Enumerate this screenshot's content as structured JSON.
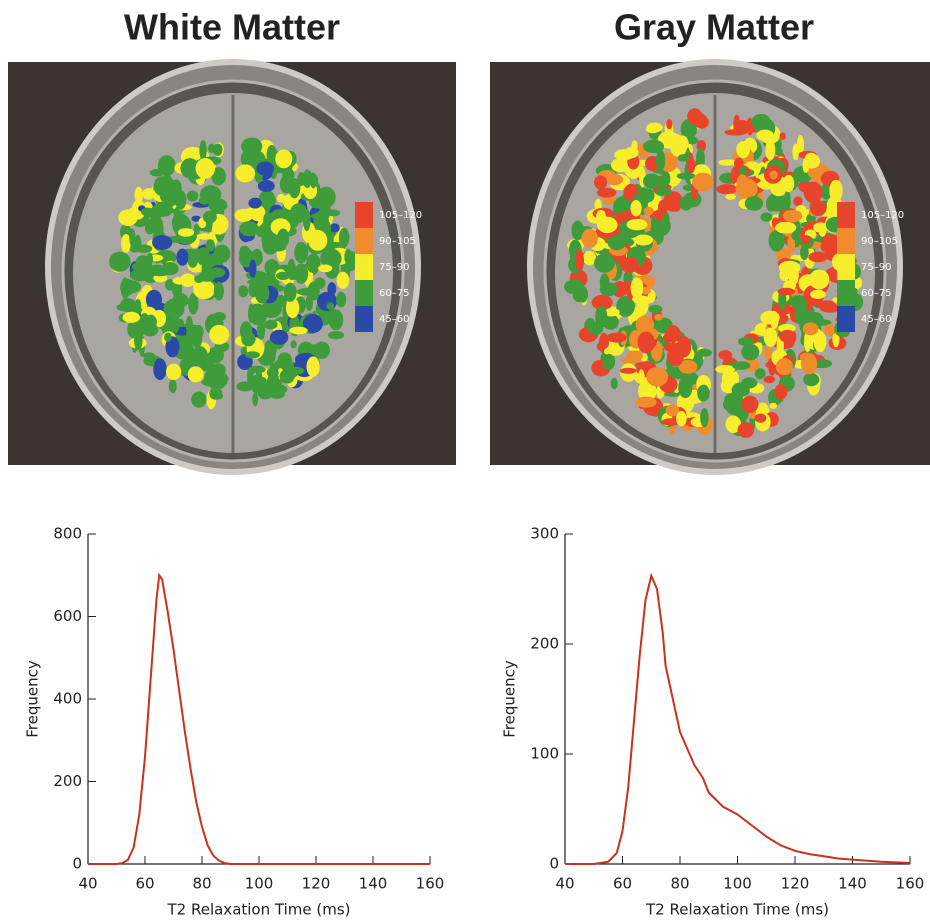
{
  "chart_data": [
    {
      "type": "line",
      "title": "White Matter",
      "image_legend": {
        "labels": [
          "105–120",
          "90–105",
          "75–90",
          "60–75",
          "45–60"
        ],
        "colors": [
          "#e8442c",
          "#f08c2c",
          "#f6ee2a",
          "#3f9c3a",
          "#2a4aa8"
        ]
      },
      "xlabel": "T2 Relaxation Time (ms)",
      "ylabel": "Frequency",
      "x": [
        40,
        50,
        52,
        54,
        56,
        58,
        60,
        62,
        64,
        65,
        66,
        68,
        70,
        72,
        74,
        76,
        78,
        80,
        82,
        84,
        86,
        88,
        90,
        100,
        120,
        140,
        160
      ],
      "series": [
        {
          "color": "#c8321e",
          "values": [
            0,
            0,
            2,
            10,
            40,
            120,
            260,
            450,
            640,
            700,
            690,
            610,
            520,
            420,
            320,
            230,
            150,
            90,
            45,
            20,
            8,
            2,
            0,
            0,
            0,
            0,
            0
          ]
        }
      ],
      "xlim": [
        40,
        160
      ],
      "ylim": [
        0,
        800
      ],
      "xticks": [
        40,
        60,
        80,
        100,
        120,
        140,
        160
      ],
      "yticks": [
        0,
        200,
        400,
        600,
        800
      ]
    },
    {
      "type": "line",
      "title": "Gray Matter",
      "image_legend": {
        "labels": [
          "105–120",
          "90–105",
          "75–90",
          "60–75",
          "45–60"
        ],
        "colors": [
          "#e8442c",
          "#f08c2c",
          "#f6ee2a",
          "#3f9c3a",
          "#2a4aa8"
        ]
      },
      "xlabel": "T2 Relaxation Time (ms)",
      "ylabel": "Frequency",
      "x": [
        40,
        50,
        55,
        58,
        60,
        62,
        64,
        66,
        68,
        70,
        72,
        74,
        75,
        80,
        85,
        88,
        90,
        95,
        100,
        105,
        110,
        115,
        120,
        125,
        130,
        135,
        140,
        150,
        160
      ],
      "series": [
        {
          "color": "#c8321e",
          "values": [
            0,
            0,
            2,
            10,
            30,
            70,
            130,
            190,
            240,
            262,
            250,
            210,
            180,
            120,
            90,
            78,
            65,
            52,
            45,
            35,
            25,
            17,
            12,
            9,
            7,
            5,
            4,
            2,
            1
          ]
        }
      ],
      "xlim": [
        40,
        160
      ],
      "ylim": [
        0,
        300
      ],
      "xticks": [
        40,
        60,
        80,
        100,
        120,
        140,
        160
      ],
      "yticks": [
        0,
        100,
        200,
        300
      ]
    }
  ]
}
